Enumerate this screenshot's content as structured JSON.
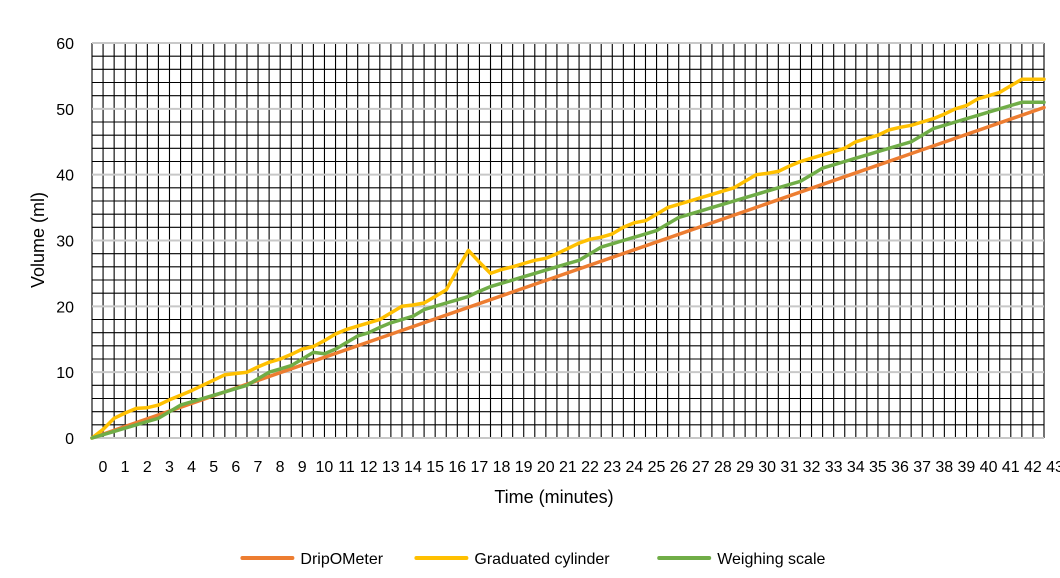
{
  "chart_data": {
    "type": "line",
    "xlabel": "Time (minutes)",
    "ylabel": "Volume (ml)",
    "xlim": [
      0,
      43
    ],
    "ylim": [
      0,
      60
    ],
    "y_ticks": [
      0,
      10,
      20,
      30,
      40,
      50,
      60
    ],
    "x_ticks": [
      0,
      1,
      2,
      3,
      4,
      5,
      6,
      7,
      8,
      9,
      10,
      11,
      12,
      13,
      14,
      15,
      16,
      17,
      18,
      19,
      20,
      21,
      22,
      23,
      24,
      25,
      26,
      27,
      28,
      29,
      30,
      31,
      32,
      33,
      34,
      35,
      36,
      37,
      38,
      39,
      40,
      41,
      42,
      43
    ],
    "grid": true,
    "legend_position": "bottom",
    "colors": {
      "grid_major": "#c8c8c8",
      "grid_minor": "#000000"
    },
    "series": [
      {
        "name": "DripOMeter",
        "color": "#ed7d31",
        "x": [
          0,
          43
        ],
        "y": [
          0,
          50.2
        ]
      },
      {
        "name": "Graduated cylinder",
        "color": "#ffc000",
        "x": [
          0,
          0.5,
          1,
          1.5,
          2,
          2.5,
          3,
          3.5,
          4,
          4.5,
          5,
          5.5,
          6,
          6.5,
          7,
          7.5,
          8,
          8.5,
          9,
          9.5,
          10,
          10.5,
          11,
          11.5,
          12,
          12.5,
          13,
          13.5,
          14,
          14.5,
          15,
          15.5,
          16,
          16.5,
          17,
          17.5,
          18,
          18.5,
          19,
          19.5,
          20,
          20.5,
          21,
          21.5,
          22,
          22.5,
          23,
          23.5,
          24,
          24.5,
          25,
          25.5,
          26,
          26.5,
          27,
          27.5,
          28,
          28.5,
          29,
          29.5,
          30,
          30.5,
          31,
          31.5,
          32,
          32.5,
          33,
          33.5,
          34,
          34.5,
          35,
          35.5,
          36,
          36.5,
          37,
          37.5,
          38,
          38.5,
          39,
          39.5,
          40,
          40.5,
          41,
          41.5,
          42,
          42.5,
          43
        ],
        "y": [
          0,
          1.3,
          3.0,
          3.8,
          4.5,
          4.6,
          5.0,
          5.8,
          6.5,
          7.2,
          8.0,
          8.8,
          9.6,
          9.8,
          10.0,
          10.8,
          11.5,
          12.0,
          12.7,
          13.5,
          13.9,
          14.8,
          15.8,
          16.5,
          17.0,
          17.5,
          18.0,
          19.0,
          20.0,
          20.2,
          20.5,
          21.5,
          22.5,
          25.6,
          28.5,
          26.7,
          25.0,
          25.6,
          26.0,
          26.5,
          27.0,
          27.3,
          28.0,
          28.8,
          29.6,
          30.2,
          30.5,
          31.0,
          32.0,
          32.7,
          33.0,
          34.0,
          35.0,
          35.5,
          36.0,
          36.5,
          37.0,
          37.5,
          38.0,
          39.0,
          40.0,
          40.2,
          40.5,
          41.3,
          42.0,
          42.5,
          43.0,
          43.5,
          44.0,
          45.0,
          45.5,
          46.0,
          46.8,
          47.2,
          47.5,
          48.0,
          48.5,
          49.2,
          50.0,
          50.5,
          51.5,
          52.0,
          52.5,
          53.5,
          54.5,
          54.5,
          54.5
        ]
      },
      {
        "name": "Weighing scale",
        "color": "#70ad47",
        "x": [
          0,
          0.5,
          1,
          1.5,
          2,
          2.5,
          3,
          3.5,
          4,
          4.5,
          5,
          5.5,
          6,
          6.5,
          7,
          7.5,
          8,
          8.5,
          9,
          9.5,
          10,
          10.5,
          11,
          11.5,
          12,
          12.5,
          13,
          13.5,
          14,
          14.5,
          15,
          15.5,
          16,
          16.5,
          17,
          17.5,
          18,
          18.5,
          19,
          19.5,
          20,
          20.5,
          21,
          21.5,
          22,
          22.5,
          23,
          23.5,
          24,
          24.5,
          25,
          25.5,
          26,
          26.5,
          27,
          27.5,
          28,
          28.5,
          29,
          29.5,
          30,
          30.5,
          31,
          31.5,
          32,
          32.5,
          33,
          33.5,
          34,
          34.5,
          35,
          35.5,
          36,
          36.5,
          37,
          37.5,
          38,
          38.5,
          39,
          39.5,
          40,
          40.5,
          41,
          41.5,
          42,
          42.5,
          43
        ],
        "y": [
          0,
          0.5,
          1.0,
          1.5,
          2.0,
          2.5,
          3.0,
          4.0,
          5.0,
          5.5,
          6.0,
          6.5,
          7.0,
          7.5,
          8.0,
          9.0,
          10.0,
          10.5,
          11.0,
          12.0,
          13.0,
          12.8,
          13.5,
          14.5,
          15.5,
          16.0,
          16.8,
          17.5,
          18.0,
          18.5,
          19.5,
          20.0,
          20.5,
          21.0,
          21.5,
          22.3,
          23.0,
          23.5,
          24.0,
          24.5,
          25.0,
          25.5,
          26.0,
          26.5,
          27.0,
          28.0,
          29.0,
          29.5,
          30.0,
          30.5,
          31.0,
          31.5,
          32.5,
          33.5,
          34.0,
          34.5,
          35.0,
          35.5,
          36.0,
          36.5,
          37.0,
          37.5,
          38.0,
          38.5,
          39.0,
          40.0,
          41.0,
          41.5,
          42.0,
          42.5,
          43.0,
          43.5,
          44.0,
          44.5,
          45.0,
          46.0,
          47.0,
          47.5,
          48.0,
          48.5,
          49.0,
          49.5,
          50.0,
          50.5,
          51.0,
          51.0,
          51.0
        ]
      }
    ]
  }
}
